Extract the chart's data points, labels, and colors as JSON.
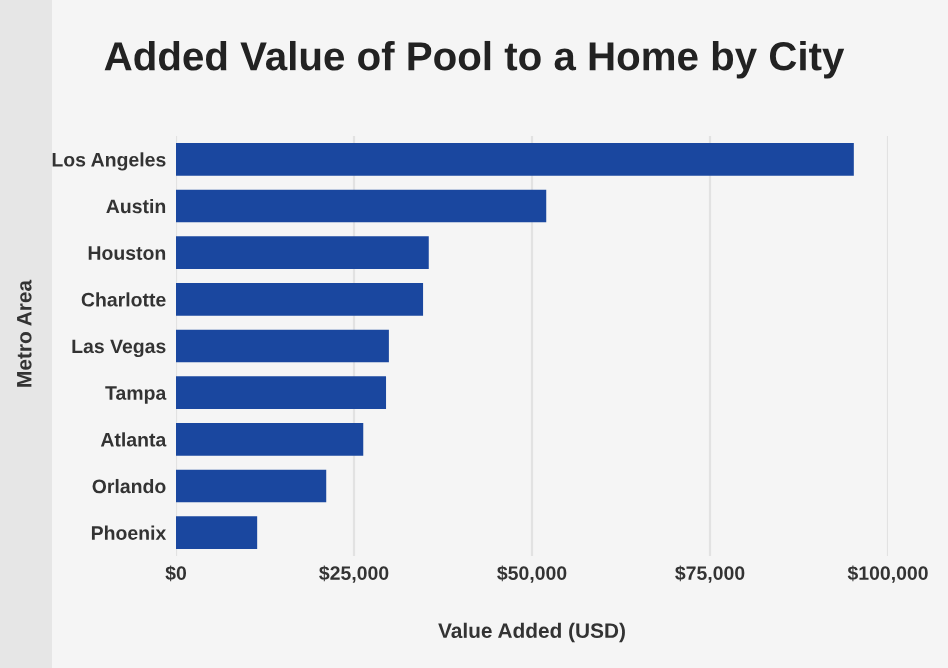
{
  "chart_data": {
    "type": "bar",
    "orientation": "horizontal",
    "title": "Added Value of Pool to a Home by City",
    "xlabel": "Value Added (USD)",
    "ylabel": "Metro Area",
    "categories": [
      "Los Angeles",
      "Austin",
      "Houston",
      "Charlotte",
      "Las Vegas",
      "Tampa",
      "Atlanta",
      "Orlando",
      "Phoenix"
    ],
    "values": [
      95200,
      52000,
      35500,
      34700,
      29900,
      29500,
      26300,
      21100,
      11400
    ],
    "color": "#1a479f",
    "xlim": [
      0,
      100000
    ],
    "xticks": [
      {
        "value": 0,
        "label": "$0"
      },
      {
        "value": 25000,
        "label": "$25,000"
      },
      {
        "value": 50000,
        "label": "$50,000"
      },
      {
        "value": 75000,
        "label": "$75,000"
      },
      {
        "value": 100000,
        "label": "$100,000"
      }
    ],
    "grid": "x",
    "legend": false
  }
}
